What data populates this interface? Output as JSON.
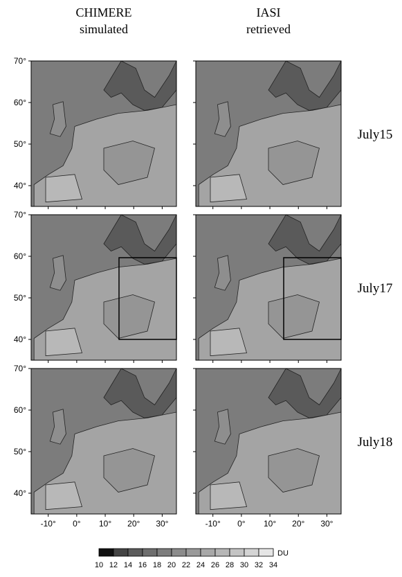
{
  "columns": [
    {
      "title": "CHIMERE",
      "subtitle": "simulated"
    },
    {
      "title": "IASI",
      "subtitle": "retrieved"
    }
  ],
  "rows": [
    "July15",
    "July17",
    "July18"
  ],
  "maps": {
    "xlim": [
      -16,
      35
    ],
    "ylim": [
      35,
      70
    ],
    "lat_ticks": [
      {
        "value": 70,
        "label": "70°"
      },
      {
        "value": 60,
        "label": "60°"
      },
      {
        "value": 50,
        "label": "50°"
      },
      {
        "value": 40,
        "label": "40°"
      }
    ],
    "lon_ticks": [
      {
        "value": -10,
        "label": "-10°"
      },
      {
        "value": 0,
        "label": "0°"
      },
      {
        "value": 10,
        "label": "10°"
      },
      {
        "value": 20,
        "label": "20°"
      },
      {
        "value": 30,
        "label": "30°"
      }
    ]
  },
  "colorbar": {
    "levels": [
      10,
      12,
      14,
      16,
      18,
      20,
      22,
      24,
      26,
      28,
      30,
      32,
      34
    ],
    "unit": "DU",
    "colors": [
      "#111111",
      "#444444",
      "#5c5c5c",
      "#6e6e6e",
      "#7d7d7d",
      "#8c8c8c",
      "#9a9a9a",
      "#a8a8a8",
      "#b6b6b6",
      "#c4c4c4",
      "#d4d4d4",
      "#e6e6e6"
    ]
  }
}
